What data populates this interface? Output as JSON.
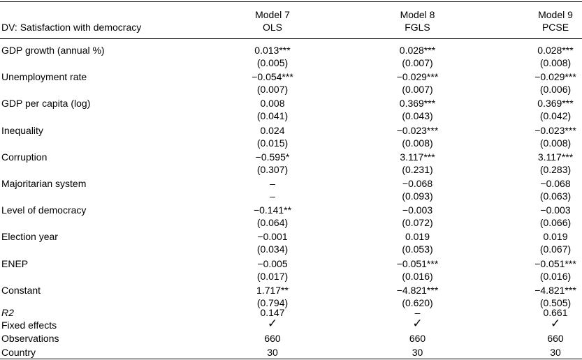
{
  "header": {
    "dv_label": "DV: Satisfaction with democracy",
    "models": [
      {
        "name": "Model 7",
        "method": "OLS"
      },
      {
        "name": "Model 8",
        "method": "FGLS"
      },
      {
        "name": "Model 9",
        "method": "PCSE"
      }
    ]
  },
  "rows": [
    {
      "label": "GDP growth (annual %)",
      "coef": [
        "0.013***",
        "0.028***",
        "0.028***"
      ],
      "se": [
        "(0.005)",
        "(0.007)",
        "(0.008)"
      ]
    },
    {
      "label": "Unemployment rate",
      "coef": [
        "−0.054***",
        "−0.029***",
        "−0.029***"
      ],
      "se": [
        "(0.007)",
        "(0.007)",
        "(0.006)"
      ]
    },
    {
      "label": "GDP per capita (log)",
      "coef": [
        "0.008",
        "0.369***",
        "0.369***"
      ],
      "se": [
        "(0.041)",
        "(0.043)",
        "(0.042)"
      ]
    },
    {
      "label": "Inequality",
      "coef": [
        "0.024",
        "−0.023***",
        "−0.023***"
      ],
      "se": [
        "(0.015)",
        "(0.008)",
        "(0.008)"
      ]
    },
    {
      "label": "Corruption",
      "coef": [
        "−0.595*",
        "3.117***",
        "3.117***"
      ],
      "se": [
        "(0.307)",
        "(0.231)",
        "(0.283)"
      ]
    },
    {
      "label": "Majoritarian system",
      "coef": [
        "–",
        "−0.068",
        "−0.068"
      ],
      "se": [
        "–",
        "(0.093)",
        "(0.063)"
      ]
    },
    {
      "label": "Level of democracy",
      "coef": [
        "−0.141**",
        "−0.003",
        "−0.003"
      ],
      "se": [
        "(0.064)",
        "(0.072)",
        "(0.066)"
      ]
    },
    {
      "label": "Election year",
      "coef": [
        "−0.001",
        "0.019",
        "0.019"
      ],
      "se": [
        "(0.034)",
        "(0.053)",
        "(0.067)"
      ]
    },
    {
      "label": "ENEP",
      "coef": [
        "−0.005",
        "−0.051***",
        "−0.051***"
      ],
      "se": [
        "(0.017)",
        "(0.016)",
        "(0.016)"
      ]
    },
    {
      "label": "Constant",
      "coef": [
        "1.717**",
        "−4.821***",
        "−4.821***"
      ],
      "se": [
        "(0.794)",
        "(0.620)",
        "(0.505)"
      ]
    }
  ],
  "footer": [
    {
      "label": "R2",
      "values": [
        "0.147",
        "–",
        "0.661"
      ]
    },
    {
      "label": "Fixed effects",
      "values": [
        "✓",
        "✓",
        "✓"
      ]
    },
    {
      "label": "Observations",
      "values": [
        "660",
        "660",
        "660"
      ]
    },
    {
      "label": "Country",
      "values": [
        "30",
        "30",
        "30"
      ]
    }
  ]
}
